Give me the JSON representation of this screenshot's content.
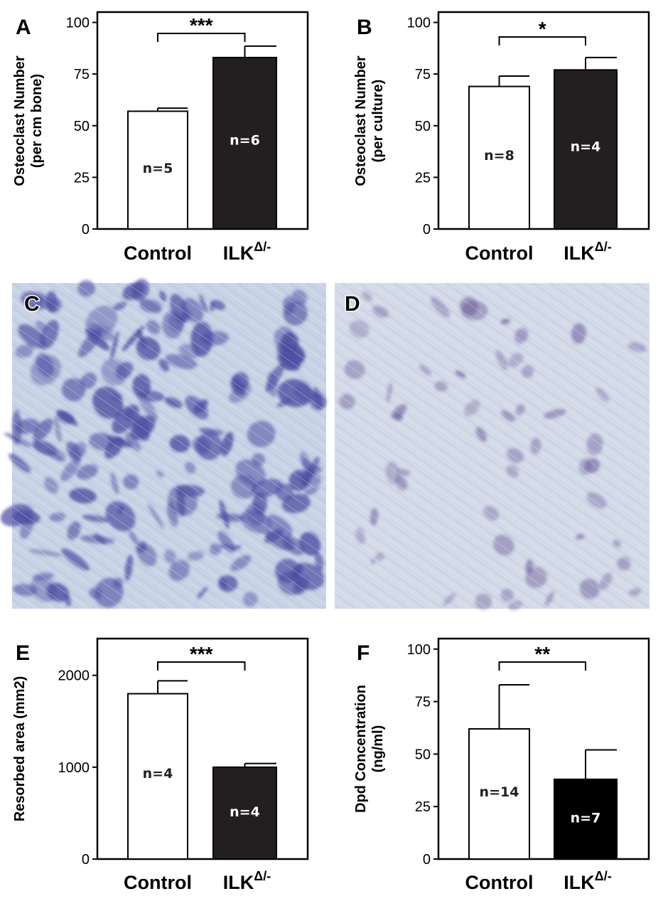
{
  "colors": {
    "control_fill": "#ffffff",
    "ilk_fill_dark": "#231f20",
    "ilk_fill_black": "#000000",
    "photo_bg": "#c9d3e6",
    "stain": "#4a4aa0"
  },
  "photos": [
    {
      "letter": "C",
      "stain_level": 0.8
    },
    {
      "letter": "D",
      "stain_level": 0.35
    }
  ],
  "chart_data": [
    {
      "panel": "A",
      "type": "bar",
      "ylabel_line1": "Osteoclast Number",
      "ylabel_line2": "(per cm bone)",
      "categories": [
        "Control",
        "ILK"
      ],
      "category_superscript": [
        "",
        "Δ/-"
      ],
      "values": [
        57,
        83
      ],
      "errors": [
        1.5,
        5.5
      ],
      "n_labels": [
        "n=5",
        "n=6"
      ],
      "ylim": [
        0,
        105
      ],
      "yticks": [
        0,
        25,
        50,
        75,
        100
      ],
      "ytick_labels": [
        "0",
        "25",
        "50",
        "75",
        "100"
      ],
      "significance": "***"
    },
    {
      "panel": "B",
      "type": "bar",
      "ylabel_line1": "Osteoclast Number",
      "ylabel_line2": "(per culture)",
      "categories": [
        "Control",
        "ILK"
      ],
      "category_superscript": [
        "",
        "Δ/-"
      ],
      "values": [
        69,
        77
      ],
      "errors": [
        5,
        6
      ],
      "n_labels": [
        "n=8",
        "n=4"
      ],
      "ylim": [
        0,
        105
      ],
      "yticks": [
        0,
        25,
        50,
        75,
        100
      ],
      "ytick_labels": [
        "0",
        "25",
        "50",
        "75",
        "100"
      ],
      "significance": "*"
    },
    {
      "panel": "E",
      "type": "bar",
      "ylabel_line1": "Resorbed area (mm2)",
      "ylabel_line2": "",
      "categories": [
        "Control",
        "ILK"
      ],
      "category_superscript": [
        "",
        "Δ/-"
      ],
      "values": [
        1800,
        1000
      ],
      "errors": [
        140,
        40
      ],
      "n_labels": [
        "n=4",
        "n=4"
      ],
      "ylim": [
        0,
        2400
      ],
      "yticks": [
        0,
        1000,
        2000
      ],
      "ytick_labels": [
        "0",
        "1000",
        "2000"
      ],
      "significance": "***"
    },
    {
      "panel": "F",
      "type": "bar",
      "ylabel_line1": "Dpd Concentration",
      "ylabel_line2": "(ng/ml)",
      "categories": [
        "Control",
        "ILK"
      ],
      "category_superscript": [
        "",
        "Δ/-"
      ],
      "values": [
        62,
        38
      ],
      "errors": [
        21,
        14
      ],
      "n_labels": [
        "n=14",
        "n=7"
      ],
      "ylim": [
        0,
        105
      ],
      "yticks": [
        0,
        25,
        50,
        75,
        100
      ],
      "ytick_labels": [
        "0",
        "25",
        "50",
        "75",
        "100"
      ],
      "significance": "**"
    }
  ]
}
